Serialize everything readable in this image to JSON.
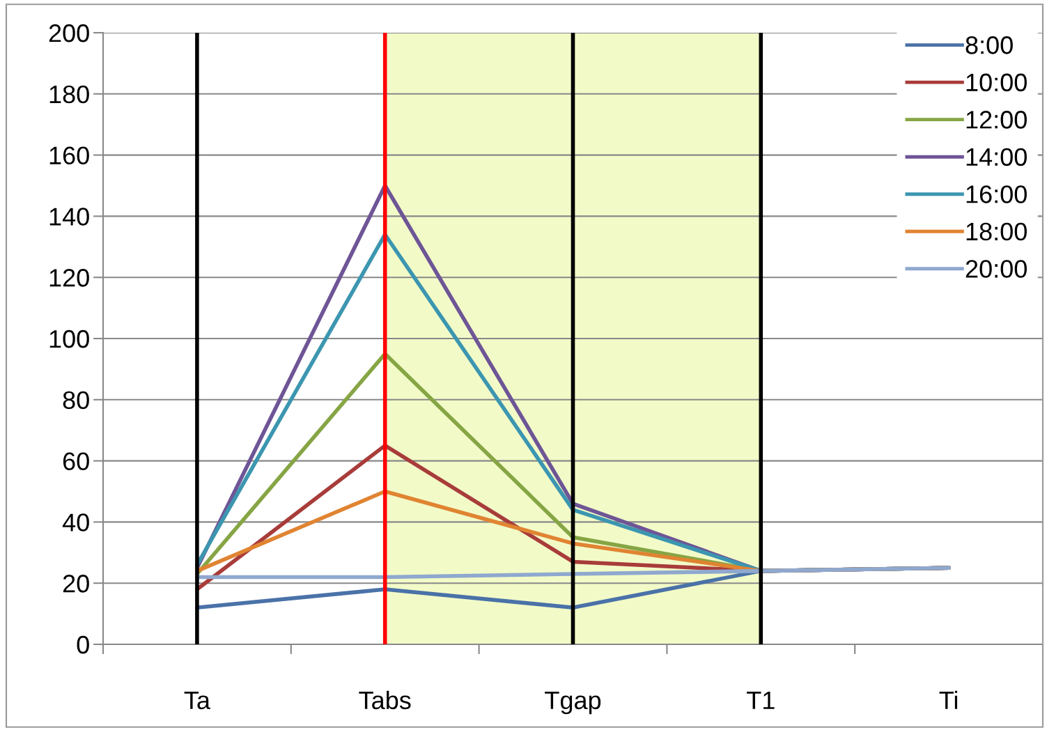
{
  "chart_data": {
    "type": "line",
    "categories": [
      "Ta",
      "Tabs",
      "Tgap",
      "T1",
      "Ti"
    ],
    "series": [
      {
        "name": "8:00",
        "color": "#4a72a8",
        "values": [
          12,
          18,
          12,
          24,
          25
        ]
      },
      {
        "name": "10:00",
        "color": "#a83c3a",
        "values": [
          18,
          65,
          27,
          24,
          25
        ]
      },
      {
        "name": "12:00",
        "color": "#86a544",
        "values": [
          23,
          95,
          35,
          24,
          25
        ]
      },
      {
        "name": "14:00",
        "color": "#6e5596",
        "values": [
          25,
          150,
          46,
          24,
          25
        ]
      },
      {
        "name": "16:00",
        "color": "#3c96b0",
        "values": [
          26,
          134,
          44,
          24,
          25
        ]
      },
      {
        "name": "18:00",
        "color": "#e08432",
        "values": [
          24,
          50,
          33,
          24,
          25
        ]
      },
      {
        "name": "20:00",
        "color": "#8fa8cf",
        "values": [
          22,
          22,
          23,
          24,
          25
        ]
      }
    ],
    "ylim": [
      0,
      200
    ],
    "yticks": [
      0,
      20,
      40,
      60,
      80,
      100,
      120,
      140,
      160,
      180,
      200
    ],
    "ref_lines": [
      {
        "axis": "x",
        "value": "Ta",
        "color": "#000000"
      },
      {
        "axis": "x",
        "value": "Tabs",
        "color": "#ff0000"
      },
      {
        "axis": "x",
        "value": "Tgap",
        "color": "#000000"
      },
      {
        "axis": "x",
        "value": "T1",
        "color": "#000000"
      }
    ],
    "bands": [
      {
        "axis": "x",
        "from": "Tabs",
        "to": "T1",
        "color": "#f2fbc8"
      }
    ],
    "grid": "y",
    "legend": "top right",
    "marker": "none",
    "line_style": "solid"
  }
}
